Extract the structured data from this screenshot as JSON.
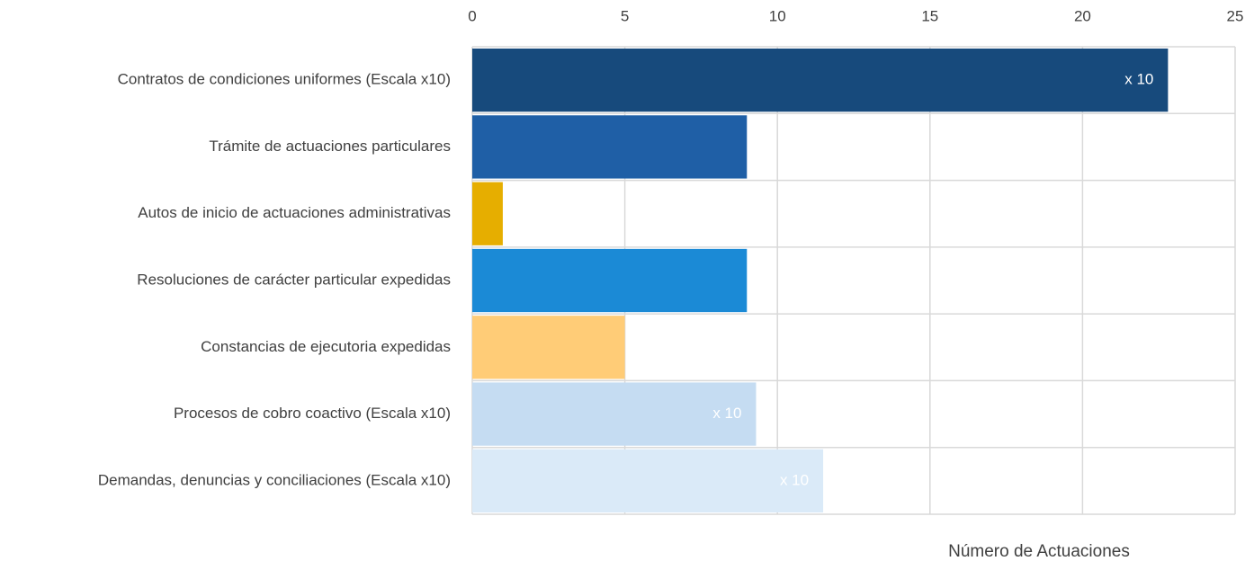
{
  "chart_data": {
    "type": "hbar",
    "xlabel": "Número de Actuaciones",
    "categories": [
      "Contratos de condiciones uniformes (Escala x10)",
      "Trámite de actuaciones particulares",
      "Autos de inicio de actuaciones administrativas",
      "Resoluciones de carácter particular expedidas",
      "Constancias de ejecutoria expedidas",
      "Procesos de cobro coactivo (Escala x10)",
      "Demandas, denuncias y conciliaciones (Escala x10)"
    ],
    "values": [
      22.8,
      9,
      1,
      9,
      5,
      9.3,
      11.5
    ],
    "colors": [
      "#174a7c",
      "#1f5fa6",
      "#e6ae00",
      "#1b8ad6",
      "#ffcc77",
      "#c5dcf2",
      "#daeaf8"
    ],
    "annotations": [
      {
        "text": "x 10",
        "index": 0
      },
      {
        "text": "x 10",
        "index": 5
      },
      {
        "text": "x 10",
        "index": 6
      }
    ],
    "xlim": [
      0,
      25
    ],
    "xticks": [
      0,
      5,
      10,
      15,
      20,
      25
    ],
    "grid": true
  }
}
